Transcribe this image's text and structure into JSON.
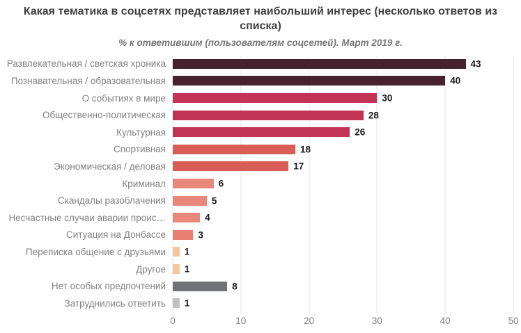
{
  "header": {
    "title": "Какая тематика в соцсетях представляет наибольший интерес (несколько ответов из списка)",
    "subtitle": "% к ответившим (пользователям соцсетей). Март 2019 г."
  },
  "chart_data": {
    "type": "bar",
    "orientation": "horizontal",
    "title": "Какая тематика в соцсетях представляет наибольший интерес (несколько ответов из списка)",
    "subtitle": "% к ответившим (пользователям соцсетей). Март 2019 г.",
    "categories": [
      "Развлекательная / светская хроника",
      "Познавательная / образовательная",
      "О событиях в мире",
      "Общественно-политическая",
      "Культурная",
      "Спортивная",
      "Экономическая / деловая",
      "Криминал",
      "Скандалы разоблачения",
      "Несчастные случаи аварии проис…",
      "Ситуация на Донбассе",
      "Переписка общение с друзьями",
      "Другое",
      "Нет особых предпочтений",
      "Затруднились ответить"
    ],
    "values": [
      43,
      40,
      30,
      28,
      26,
      18,
      17,
      6,
      5,
      4,
      3,
      1,
      1,
      8,
      1
    ],
    "bar_colors": [
      "#46222e",
      "#46222e",
      "#c23356",
      "#c23356",
      "#c23356",
      "#d85d57",
      "#d85d57",
      "#e9877a",
      "#e9877a",
      "#e9877a",
      "#eb8072",
      "#f4c59c",
      "#f4c59c",
      "#707275",
      "#bfc1c3"
    ],
    "xlabel": "",
    "ylabel": "",
    "xlim": [
      0,
      50
    ],
    "xticks": [
      0,
      10,
      20,
      30,
      40,
      50
    ],
    "grid": "vertical",
    "legend": "none",
    "value_labels": "end-of-bar"
  }
}
